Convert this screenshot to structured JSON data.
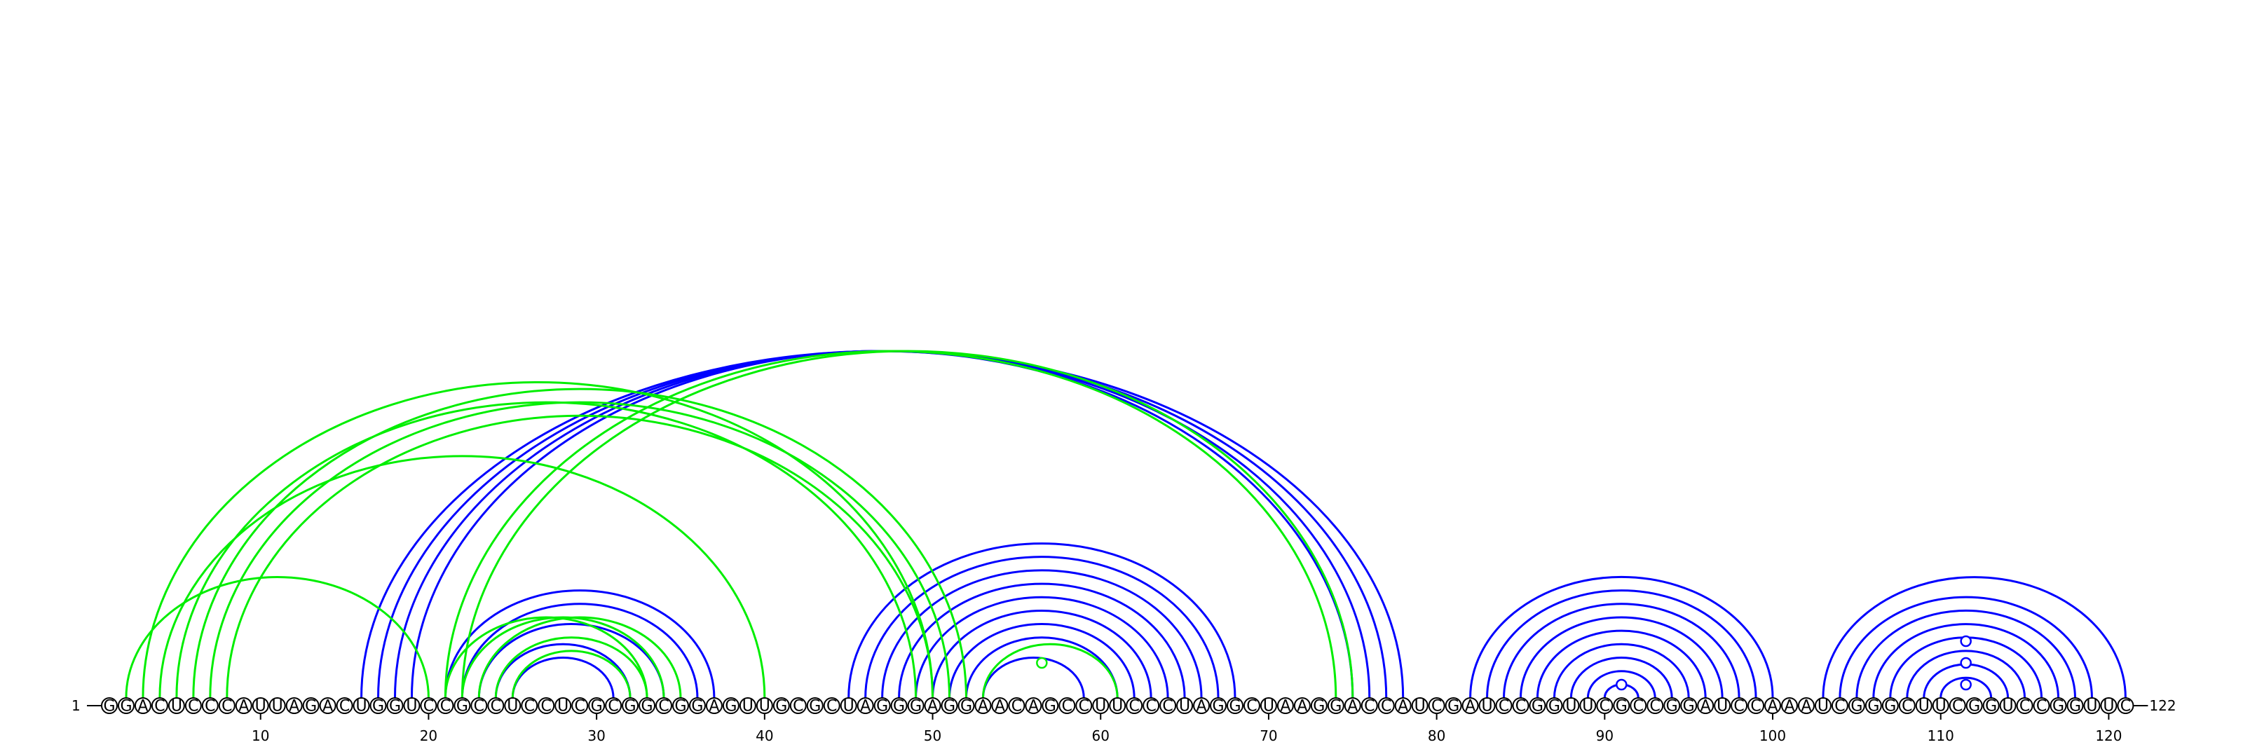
{
  "sequence": "GGACUCCCAUUAGACUGGUCCGCCUCCUCGCGGCGGAGUUGCGCUAGGGAGGAACAGCCUUCCCUAGGCUAAGGACCAUCGAUCCGGUUCGCCGGAUCCAAAUCGGGCUUCGGUCCGGUUC",
  "start_label": "1",
  "end_label": "122",
  "ticks": [
    10,
    20,
    30,
    40,
    50,
    60,
    70,
    80,
    90,
    100,
    110,
    120
  ],
  "colors": {
    "blue": "#0000ff",
    "green": "#00ee00"
  },
  "arcs_blue": [
    [
      16,
      78
    ],
    [
      17,
      77
    ],
    [
      18,
      76
    ],
    [
      19,
      75
    ],
    [
      21,
      37
    ],
    [
      22,
      36
    ],
    [
      23,
      34
    ],
    [
      24,
      32
    ],
    [
      25,
      31
    ],
    [
      45,
      68
    ],
    [
      46,
      67
    ],
    [
      47,
      66
    ],
    [
      48,
      65
    ],
    [
      49,
      64
    ],
    [
      50,
      63
    ],
    [
      51,
      62
    ],
    [
      52,
      61
    ],
    [
      53,
      59
    ],
    [
      82,
      100
    ],
    [
      83,
      99
    ],
    [
      84,
      98
    ],
    [
      85,
      97
    ],
    [
      86,
      96
    ],
    [
      87,
      95
    ],
    [
      88,
      94
    ],
    [
      89,
      93
    ],
    [
      90,
      92
    ],
    [
      103,
      121
    ],
    [
      104,
      119
    ],
    [
      105,
      118
    ],
    [
      106,
      117
    ],
    [
      107,
      116
    ],
    [
      108,
      115
    ],
    [
      109,
      114
    ],
    [
      110,
      113
    ]
  ],
  "arcs_green": [
    [
      2,
      20
    ],
    [
      3,
      50
    ],
    [
      4,
      40
    ],
    [
      5,
      49
    ],
    [
      6,
      52
    ],
    [
      7,
      51
    ],
    [
      8,
      50
    ],
    [
      21,
      74
    ],
    [
      22,
      75
    ],
    [
      21,
      33
    ],
    [
      22,
      34
    ],
    [
      23,
      35
    ],
    [
      24,
      33
    ],
    [
      25,
      32
    ],
    [
      53,
      61
    ]
  ],
  "markers": [
    {
      "pos": 56.5,
      "level": 1,
      "color": "green"
    },
    {
      "pos": 91,
      "level": 0,
      "color": "blue"
    },
    {
      "pos": 111.5,
      "level": 0,
      "color": "blue"
    },
    {
      "pos": 111.5,
      "level": 1,
      "color": "blue"
    },
    {
      "pos": 111.5,
      "level": 2,
      "color": "blue"
    }
  ]
}
